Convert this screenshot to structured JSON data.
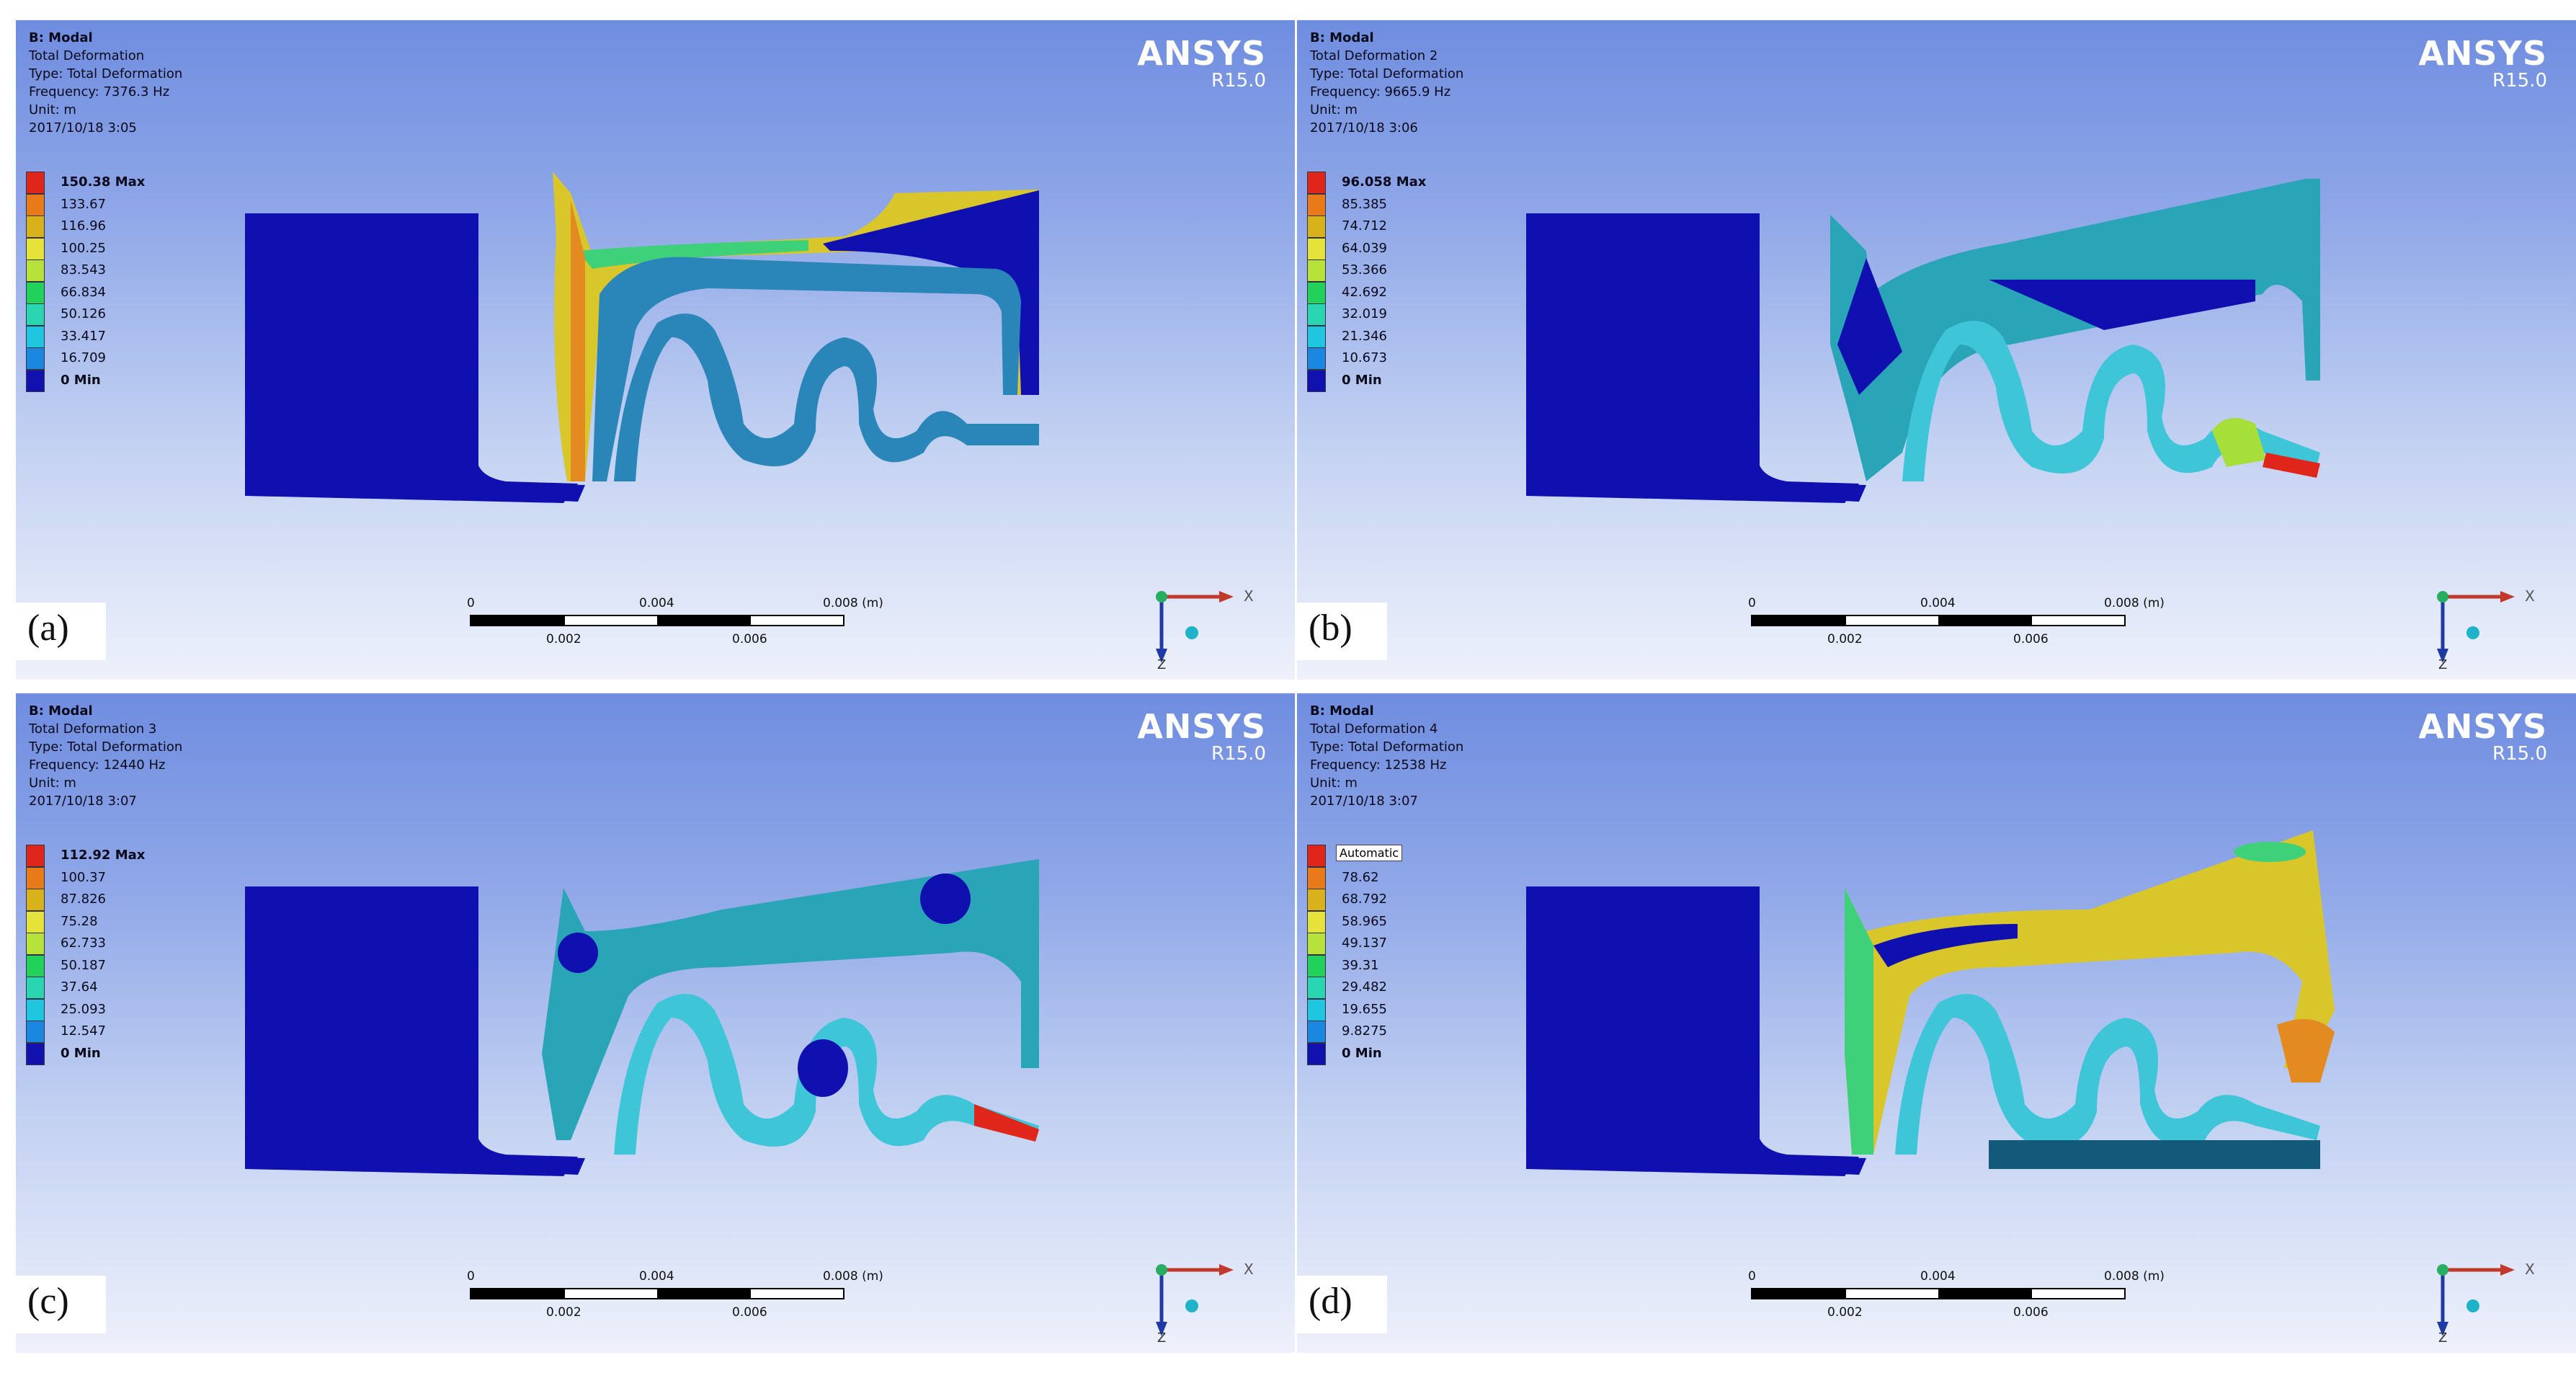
{
  "brand": {
    "name": "ANSYS",
    "version": "R15.0"
  },
  "scale_bar": {
    "labels_top": [
      "0",
      "0.004",
      "0.008 (m)"
    ],
    "labels_bottom": [
      "0.002",
      "0.006"
    ]
  },
  "triad": {
    "x": "X",
    "z": "Z"
  },
  "colors": {
    "max": "#e0261a",
    "mid_high": "#e8c21a",
    "mid": "#c9e63a",
    "low_mid": "#3bd4a7",
    "low": "#1fa9e0",
    "min": "#1111b0"
  },
  "panels": [
    {
      "label": "(a)",
      "header": [
        "B: Modal",
        "Total Deformation",
        "Type: Total Deformation",
        "Frequency: 7376.3 Hz",
        "Unit: m",
        "2017/10/18 3:05"
      ],
      "legend": [
        "150.38 Max",
        "133.67",
        "116.96",
        "100.25",
        "83.543",
        "66.834",
        "50.126",
        "33.417",
        "16.709",
        "0 Min"
      ],
      "tooltip": ""
    },
    {
      "label": "(b)",
      "header": [
        "B: Modal",
        "Total Deformation 2",
        "Type: Total Deformation",
        "Frequency: 9665.9 Hz",
        "Unit: m",
        "2017/10/18 3:06"
      ],
      "legend": [
        "96.058 Max",
        "85.385",
        "74.712",
        "64.039",
        "53.366",
        "42.692",
        "32.019",
        "21.346",
        "10.673",
        "0 Min"
      ],
      "tooltip": ""
    },
    {
      "label": "(c)",
      "header": [
        "B: Modal",
        "Total Deformation 3",
        "Type: Total Deformation",
        "Frequency: 12440 Hz",
        "Unit: m",
        "2017/10/18 3:07"
      ],
      "legend": [
        "112.92 Max",
        "100.37",
        "87.826",
        "75.28",
        "62.733",
        "50.187",
        "37.64",
        "25.093",
        "12.547",
        "0 Min"
      ],
      "tooltip": ""
    },
    {
      "label": "(d)",
      "header": [
        "B: Modal",
        "Total Deformation 4",
        "Type: Total Deformation",
        "Frequency: 12538 Hz",
        "Unit: m",
        "2017/10/18 3:07"
      ],
      "legend": [
        "",
        "78.62",
        "68.792",
        "58.965",
        "49.137",
        "39.31",
        "29.482",
        "19.655",
        "9.8275",
        "0 Min"
      ],
      "tooltip": "Automatic"
    }
  ]
}
